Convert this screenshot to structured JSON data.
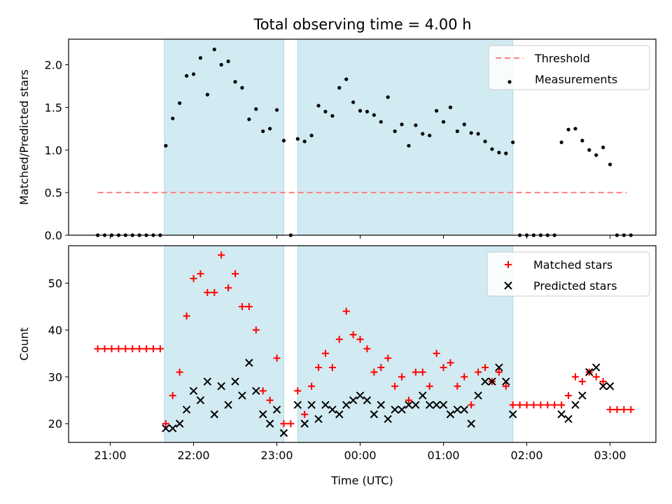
{
  "title": "Total observing time = 4.00 h",
  "colors": {
    "shade": "#add8e6",
    "threshold": "#ff7f7f",
    "measurement": "#000000",
    "matched": "#ff0000",
    "predicted": "#000000"
  },
  "chart_data": [
    {
      "type": "scatter",
      "ylabel": "Matched/Predicted stars",
      "ylim": [
        0,
        2.3
      ],
      "yticks": [
        "0.0",
        "0.5",
        "1.0",
        "1.5",
        "2.0"
      ],
      "ytick_values": [
        0,
        0.5,
        1.0,
        1.5,
        2.0
      ],
      "xlim": [
        "20:30",
        "03:33"
      ],
      "xticks": [
        "21:00",
        "22:00",
        "23:00",
        "00:00",
        "01:00",
        "02:00",
        "03:00"
      ],
      "shaded_spans": [
        [
          "21:39",
          "23:05"
        ],
        [
          "23:15",
          "01:50"
        ]
      ],
      "legend": {
        "position": "top-right",
        "entries": [
          "Threshold",
          "Measurements"
        ]
      },
      "threshold": {
        "name": "Threshold",
        "value": 0.5,
        "x_range": [
          "20:51",
          "03:12"
        ]
      },
      "series": [
        {
          "name": "Measurements",
          "x": [
            "20:51",
            "20:56",
            "21:01",
            "21:06",
            "21:11",
            "21:16",
            "21:21",
            "21:26",
            "21:31",
            "21:36",
            "21:40",
            "21:45",
            "21:50",
            "21:55",
            "22:00",
            "22:05",
            "22:10",
            "22:15",
            "22:20",
            "22:25",
            "22:30",
            "22:35",
            "22:40",
            "22:45",
            "22:50",
            "22:55",
            "23:00",
            "23:05",
            "23:10",
            "23:15",
            "23:20",
            "23:25",
            "23:30",
            "23:35",
            "23:40",
            "23:45",
            "23:50",
            "23:55",
            "00:00",
            "00:05",
            "00:10",
            "00:15",
            "00:20",
            "00:25",
            "00:30",
            "00:35",
            "00:40",
            "00:45",
            "00:50",
            "00:55",
            "01:00",
            "01:05",
            "01:10",
            "01:15",
            "01:20",
            "01:25",
            "01:30",
            "01:35",
            "01:40",
            "01:45",
            "01:50",
            "01:55",
            "02:00",
            "02:05",
            "02:10",
            "02:15",
            "02:20",
            "02:25",
            "02:30",
            "02:35",
            "02:40",
            "02:45",
            "02:50",
            "02:55",
            "03:00",
            "03:05",
            "03:10",
            "03:15"
          ],
          "y": [
            0,
            0,
            0,
            0,
            0,
            0,
            0,
            0,
            0,
            0,
            1.05,
            1.37,
            1.55,
            1.87,
            1.89,
            2.08,
            1.65,
            2.18,
            2.0,
            2.04,
            1.8,
            1.73,
            1.36,
            1.48,
            1.22,
            1.25,
            1.47,
            1.11,
            0,
            1.13,
            1.1,
            1.17,
            1.52,
            1.45,
            1.4,
            1.73,
            1.83,
            1.56,
            1.46,
            1.45,
            1.41,
            1.33,
            1.62,
            1.22,
            1.3,
            1.05,
            1.29,
            1.19,
            1.17,
            1.46,
            1.33,
            1.5,
            1.22,
            1.3,
            1.2,
            1.19,
            1.1,
            1.01,
            0.97,
            0.96,
            1.09,
            0,
            0,
            0,
            0,
            0,
            0,
            1.09,
            1.24,
            1.25,
            1.11,
            1.0,
            0.94,
            1.03,
            0.83,
            0,
            0,
            0
          ]
        }
      ]
    },
    {
      "type": "scatter",
      "xlabel": "Time (UTC)",
      "ylabel": "Count",
      "ylim": [
        16,
        58
      ],
      "yticks": [
        "20",
        "30",
        "40",
        "50"
      ],
      "ytick_values": [
        20,
        30,
        40,
        50
      ],
      "xlim": [
        "20:30",
        "03:33"
      ],
      "xticks": [
        "21:00",
        "22:00",
        "23:00",
        "00:00",
        "01:00",
        "02:00",
        "03:00"
      ],
      "shaded_spans": [
        [
          "21:39",
          "23:05"
        ],
        [
          "23:15",
          "01:50"
        ]
      ],
      "legend": {
        "position": "top-right",
        "entries": [
          "Matched stars",
          "Predicted stars"
        ]
      },
      "series": [
        {
          "name": "Matched stars",
          "marker": "plus",
          "x": [
            "20:51",
            "20:56",
            "21:01",
            "21:06",
            "21:11",
            "21:16",
            "21:21",
            "21:26",
            "21:31",
            "21:36",
            "21:40",
            "21:45",
            "21:50",
            "21:55",
            "22:00",
            "22:05",
            "22:10",
            "22:15",
            "22:20",
            "22:25",
            "22:30",
            "22:35",
            "22:40",
            "22:45",
            "22:50",
            "22:55",
            "23:00",
            "23:05",
            "23:10",
            "23:15",
            "23:20",
            "23:25",
            "23:30",
            "23:35",
            "23:40",
            "23:45",
            "23:50",
            "23:55",
            "00:00",
            "00:05",
            "00:10",
            "00:15",
            "00:20",
            "00:25",
            "00:30",
            "00:35",
            "00:40",
            "00:45",
            "00:50",
            "00:55",
            "01:00",
            "01:05",
            "01:10",
            "01:15",
            "01:20",
            "01:25",
            "01:30",
            "01:35",
            "01:40",
            "01:45",
            "01:50",
            "01:55",
            "02:00",
            "02:05",
            "02:10",
            "02:15",
            "02:20",
            "02:25",
            "02:30",
            "02:35",
            "02:40",
            "02:45",
            "02:50",
            "02:55",
            "03:00",
            "03:05",
            "03:10",
            "03:15"
          ],
          "y": [
            36,
            36,
            36,
            36,
            36,
            36,
            36,
            36,
            36,
            36,
            20,
            26,
            31,
            43,
            51,
            52,
            48,
            48,
            56,
            49,
            52,
            45,
            45,
            40,
            27,
            25,
            34,
            20,
            20,
            27,
            22,
            28,
            32,
            35,
            32,
            38,
            44,
            39,
            38,
            36,
            31,
            32,
            34,
            28,
            30,
            25,
            31,
            31,
            28,
            35,
            32,
            33,
            28,
            30,
            24,
            31,
            32,
            29,
            31,
            28,
            24,
            24,
            24,
            24,
            24,
            24,
            24,
            24,
            26,
            30,
            29,
            31,
            30,
            29,
            23,
            23,
            23,
            23
          ]
        },
        {
          "name": "Predicted stars",
          "marker": "x",
          "x": [
            "21:40",
            "21:45",
            "21:50",
            "21:55",
            "22:00",
            "22:05",
            "22:10",
            "22:15",
            "22:20",
            "22:25",
            "22:30",
            "22:35",
            "22:40",
            "22:45",
            "22:50",
            "22:55",
            "23:00",
            "23:05",
            "23:15",
            "23:20",
            "23:25",
            "23:30",
            "23:35",
            "23:40",
            "23:45",
            "23:50",
            "23:55",
            "00:00",
            "00:05",
            "00:10",
            "00:15",
            "00:20",
            "00:25",
            "00:30",
            "00:35",
            "00:40",
            "00:45",
            "00:50",
            "00:55",
            "01:00",
            "01:05",
            "01:10",
            "01:15",
            "01:20",
            "01:25",
            "01:30",
            "01:35",
            "01:40",
            "01:45",
            "01:50",
            "02:25",
            "02:30",
            "02:35",
            "02:40",
            "02:45",
            "02:50",
            "02:55",
            "03:00"
          ],
          "y": [
            19,
            19,
            20,
            23,
            27,
            25,
            29,
            22,
            28,
            24,
            29,
            26,
            33,
            27,
            22,
            20,
            23,
            18,
            24,
            20,
            24,
            21,
            24,
            23,
            22,
            24,
            25,
            26,
            25,
            22,
            24,
            21,
            23,
            23,
            24,
            24,
            26,
            24,
            24,
            24,
            22,
            23,
            23,
            20,
            26,
            29,
            29,
            32,
            29,
            22,
            22,
            21,
            24,
            26,
            31,
            32,
            28,
            28
          ]
        }
      ]
    }
  ]
}
